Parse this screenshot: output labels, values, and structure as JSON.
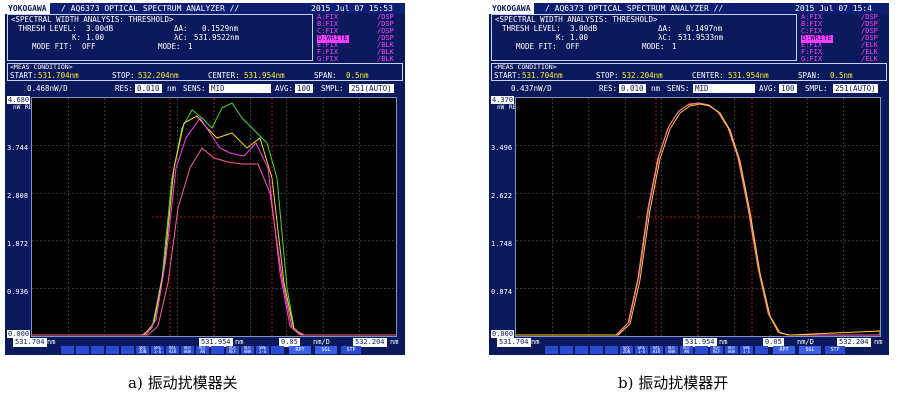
{
  "panels": [
    {
      "id": "a",
      "logo": "YOKOGAWA",
      "title": "/ AQ6373 OPTICAL SPECTRUM ANALYZER //",
      "datetime": "2015 Jul 07 15:53",
      "analysis_header": "<SPECTRAL WIDTH ANALYSIS: THRESHOLD>",
      "thresh_label": "THRESH LEVEL:",
      "thresh_value": "3.00dB",
      "k_label": "K:",
      "k_value": "1.00",
      "modefit_label": "MODE FIT:",
      "modefit_value": "OFF",
      "dl_label": "ΔA:",
      "dl_value": "0.1529nm",
      "lc_label": "λC:",
      "lc_value": "531.9522nm",
      "mode_label": "MODE:",
      "mode_value": "1",
      "traces_left": [
        "A:FIX",
        "B:FIX",
        "C:FIX",
        "D:WRITE",
        "E:FIX",
        "F:FIX",
        "G:FIX"
      ],
      "traces_right": [
        "/DSP",
        "/DSP",
        "/DSP",
        "/DSP",
        "/BLK",
        "/BLK",
        "/BLK"
      ],
      "cond_header": "<MEAS CONDITION>",
      "start_label": "START:",
      "start_value": "531.704nm",
      "stop_label": "STOP:",
      "stop_value": "532.204nm",
      "center_label": "CENTER:",
      "center_value": "531.954nm",
      "span_label": "SPAN:",
      "span_value": "0.5nm",
      "scale": "0.468nW/D",
      "res_label": "RES:",
      "res_value": "0.010",
      "res_unit": "nm",
      "sens_label": "SENS:",
      "sens_value": "MID",
      "avg_label": "AVG:",
      "avg_value": "100",
      "smpl_label": "SMPL:",
      "smpl_value": "251(AUTO)",
      "ref_label": "REF",
      "y_top": "4.680",
      "y_unit": "nW",
      "y_ticks": [
        "3.744",
        "2.808",
        "1.872",
        "0.936"
      ],
      "y_bottom": "0.000",
      "x_start": "531.704",
      "x_center": "531.954",
      "x_div": "0.05",
      "x_div_unit": "nm/D",
      "x_stop": "532.204",
      "x_unit": "nm",
      "softkeys": [
        "",
        "",
        "",
        "",
        "",
        "SRC ZON",
        "SRC 1-G",
        "VAC AIR",
        "AUT ANA",
        "AUT AN",
        "",
        "AUT REF",
        "AUT ANA",
        "SWE 1-G",
        "",
        "RPT",
        "SGL",
        "STP"
      ],
      "caption": "a) 振动扰模器关"
    },
    {
      "id": "b",
      "logo": "YOKOGAWA",
      "title": "/ AQ6373 OPTICAL SPECTRUM ANALYZER //",
      "datetime": "2015 Jul 07 15:4",
      "analysis_header": "<SPECTRAL WIDTH ANALYSIS: THRESHOLD>",
      "thresh_label": "THRESH LEVEL:",
      "thresh_value": "3.00dB",
      "k_label": "K:",
      "k_value": "1.00",
      "modefit_label": "MODE FIT:",
      "modefit_value": "OFF",
      "dl_label": "ΔA:",
      "dl_value": "0.1497nm",
      "lc_label": "λC:",
      "lc_value": "531.9533nm",
      "mode_label": "MODE:",
      "mode_value": "1",
      "traces_left": [
        "A:FIX",
        "B:FIX",
        "C:FIX",
        "D:WRITE",
        "E:FIX",
        "F:FIX",
        "G:FIX"
      ],
      "traces_right": [
        "/DSP",
        "/DSP",
        "/DSP",
        "/DSP",
        "/ELK",
        "/ELK",
        "/ELK"
      ],
      "cond_header": "<MEAS CONDITION>",
      "start_label": "START:",
      "start_value": "531.704nm",
      "stop_label": "STOP:",
      "stop_value": "532.204nm",
      "center_label": "CENTER:",
      "center_value": "531.954nm",
      "span_label": "SPAN:",
      "span_value": "0.5nm",
      "scale": "0.437nW/D",
      "res_label": "RES:",
      "res_value": "0.010",
      "res_unit": "nm",
      "sens_label": "SENS:",
      "sens_value": "MID",
      "avg_label": "AVG:",
      "avg_value": "100",
      "smpl_label": "SMPL:",
      "smpl_value": "251(AUTO)",
      "ref_label": "REF",
      "y_top": "4.370",
      "y_unit": "nW",
      "y_ticks": [
        "3.496",
        "2.622",
        "1.748",
        "0.874"
      ],
      "y_bottom": "0.000",
      "x_start": "531.704",
      "x_center": "531.954",
      "x_div": "0.05",
      "x_div_unit": "nm/D",
      "x_stop": "532.204",
      "x_unit": "nm",
      "softkeys": [
        "",
        "",
        "",
        "",
        "",
        "SRC ZON",
        "SRC 1-G",
        "VAC AIR",
        "AUT ANA",
        "AUT AN",
        "",
        "AUT REF",
        "AUT ANA",
        "SWE 1-G",
        "",
        "RPT",
        "SGL",
        "STP"
      ],
      "caption": "b) 振动扰模器开"
    }
  ],
  "colors": {
    "screen_bg": "#0a1a5c",
    "graph_bg": "#000000",
    "grid": "#5a5a5a",
    "threshold_marker": "#d81818",
    "trace_colors_a": [
      "#ffd21e",
      "#3cdc3c",
      "#ff3cff",
      "#ff5a9b"
    ],
    "trace_colors_b": [
      "#ffd21e",
      "#ff66cc",
      "#ff9933"
    ]
  }
}
